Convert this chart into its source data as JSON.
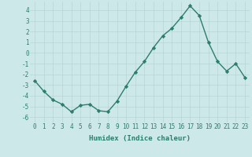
{
  "xlabel": "Humidex (Indice chaleur)",
  "ylabel": "",
  "x": [
    0,
    1,
    2,
    3,
    4,
    5,
    6,
    7,
    8,
    9,
    10,
    11,
    12,
    13,
    14,
    15,
    16,
    17,
    18,
    19,
    20,
    21,
    22,
    23
  ],
  "y": [
    -2.6,
    -3.6,
    -4.4,
    -4.8,
    -5.5,
    -4.9,
    -4.8,
    -5.4,
    -5.5,
    -4.5,
    -3.1,
    -1.8,
    -0.8,
    0.5,
    1.6,
    2.3,
    3.3,
    4.4,
    3.5,
    1.0,
    -0.8,
    -1.7,
    -1.0,
    -2.3
  ],
  "line_color": "#2d7d6e",
  "marker": "D",
  "markersize": 2.2,
  "linewidth": 1.0,
  "bg_color": "#cce8e8",
  "grid_color": "#b8d4d4",
  "ylim": [
    -6.5,
    4.8
  ],
  "yticks": [
    -6,
    -5,
    -4,
    -3,
    -2,
    -1,
    0,
    1,
    2,
    3,
    4
  ],
  "xticks": [
    0,
    1,
    2,
    3,
    4,
    5,
    6,
    7,
    8,
    9,
    10,
    11,
    12,
    13,
    14,
    15,
    16,
    17,
    18,
    19,
    20,
    21,
    22,
    23
  ],
  "tick_label_fontsize": 5.5,
  "axis_label_fontsize": 6.5,
  "tick_color": "#2d7d6e"
}
